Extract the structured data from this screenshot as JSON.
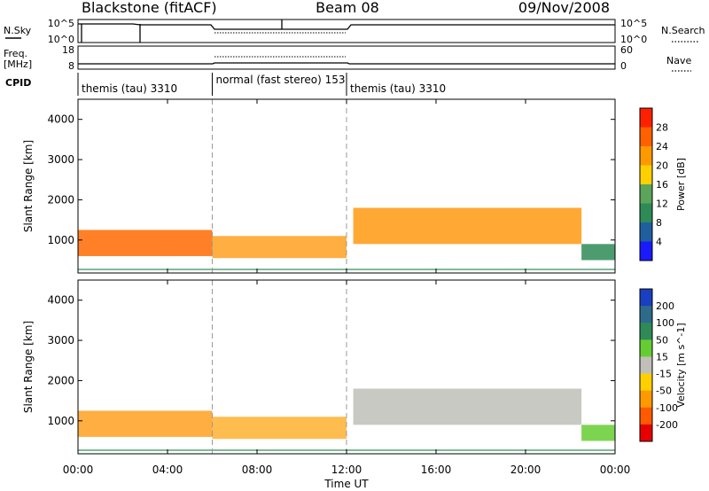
{
  "header": {
    "station": "Blackstone (fitACF)",
    "beam": "Beam 08",
    "date": "09/Nov/2008"
  },
  "noise_panel": {
    "left_label": "N.Sky",
    "left_ticks": [
      "10^5",
      "10^0"
    ],
    "right_label": "N.Search",
    "right_ticks": [
      "10^5",
      "10^0"
    ]
  },
  "freq_panel": {
    "left_label_1": "Freq.",
    "left_label_2": "[MHz]",
    "left_ticks": [
      "18",
      "8"
    ],
    "right_label": "Nave",
    "right_ticks": [
      "60",
      "0"
    ]
  },
  "cpid": {
    "label": "CPID",
    "segments": [
      {
        "text": "themis (tau) 3310",
        "start_h": 0,
        "end_h": 6
      },
      {
        "text": "normal (fast stereo) 153",
        "start_h": 6,
        "end_h": 12
      },
      {
        "text": "themis (tau) 3310",
        "start_h": 12,
        "end_h": 24
      }
    ]
  },
  "chart_data": [
    {
      "type": "heatmap",
      "title": "",
      "xlabel": "Time UT",
      "ylabel": "Slant Range [km]",
      "xlim_hours": [
        0,
        24
      ],
      "ylim_km": [
        180,
        4500
      ],
      "yticks": [
        1000,
        2000,
        3000,
        4000
      ],
      "colorbar_label": "Power [dB]",
      "colorbar_ticks": [
        4,
        8,
        12,
        16,
        20,
        24,
        28
      ],
      "colorbar_colors": [
        "#1a1aff",
        "#1f5fa0",
        "#2e8b57",
        "#5aa55a",
        "#ffd000",
        "#ff9900",
        "#ff6000",
        "#ff2000"
      ],
      "echo_regions": [
        {
          "t0": 0.0,
          "t1": 6.0,
          "r0": 600,
          "r1": 1250,
          "color": "#ff6a00"
        },
        {
          "t0": 6.0,
          "t1": 12.0,
          "r0": 550,
          "r1": 1100,
          "color": "#ffa020"
        },
        {
          "t0": 12.3,
          "t1": 22.5,
          "r0": 900,
          "r1": 1800,
          "color": "#ff9a10"
        },
        {
          "t0": 22.5,
          "t1": 24.0,
          "r0": 500,
          "r1": 900,
          "color": "#2e8b57"
        }
      ]
    },
    {
      "type": "heatmap",
      "title": "",
      "xlabel": "Time UT",
      "ylabel": "Slant Range [km]",
      "xlim_hours": [
        0,
        24
      ],
      "ylim_km": [
        180,
        4500
      ],
      "yticks": [
        1000,
        2000,
        3000,
        4000
      ],
      "xticks": [
        "00:00",
        "04:00",
        "08:00",
        "12:00",
        "16:00",
        "20:00",
        "00:00"
      ],
      "colorbar_label": "Velocity [m s^-1]",
      "colorbar_ticks": [
        200,
        100,
        50,
        15,
        -15,
        -50,
        -100,
        -200
      ],
      "colorbar_colors": [
        "#1a3fc0",
        "#2e6b8b",
        "#2e8b57",
        "#66cc33",
        "#c0c0b8",
        "#ffd000",
        "#ff9900",
        "#ff5a00",
        "#e80000"
      ],
      "echo_regions": [
        {
          "t0": 0.0,
          "t1": 6.0,
          "r0": 600,
          "r1": 1250,
          "color": "#ffa020"
        },
        {
          "t0": 6.0,
          "t1": 12.0,
          "r0": 550,
          "r1": 1100,
          "color": "#ffb030"
        },
        {
          "t0": 12.3,
          "t1": 22.5,
          "r0": 900,
          "r1": 1800,
          "color": "#c0c0b8"
        },
        {
          "t0": 22.5,
          "t1": 24.0,
          "r0": 500,
          "r1": 900,
          "color": "#66cc33"
        }
      ]
    }
  ]
}
